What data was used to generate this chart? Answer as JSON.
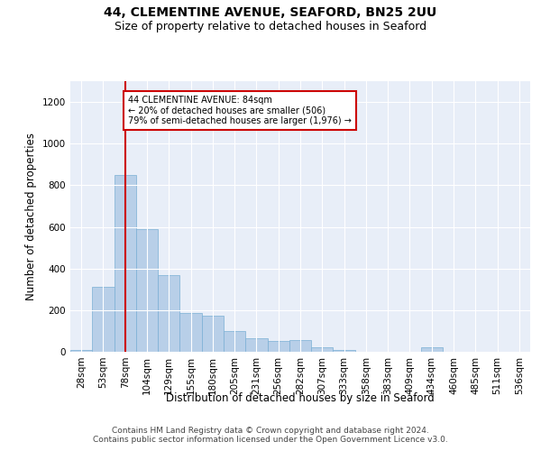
{
  "title1": "44, CLEMENTINE AVENUE, SEAFORD, BN25 2UU",
  "title2": "Size of property relative to detached houses in Seaford",
  "xlabel": "Distribution of detached houses by size in Seaford",
  "ylabel": "Number of detached properties",
  "categories": [
    "28sqm",
    "53sqm",
    "78sqm",
    "104sqm",
    "129sqm",
    "155sqm",
    "180sqm",
    "205sqm",
    "231sqm",
    "256sqm",
    "282sqm",
    "307sqm",
    "333sqm",
    "358sqm",
    "383sqm",
    "409sqm",
    "434sqm",
    "460sqm",
    "485sqm",
    "511sqm",
    "536sqm"
  ],
  "values": [
    10,
    310,
    850,
    590,
    370,
    185,
    175,
    100,
    65,
    50,
    55,
    20,
    10,
    0,
    0,
    0,
    20,
    0,
    0,
    0,
    0
  ],
  "bar_color": "#b8cfe8",
  "bar_edge_color": "#7aafd4",
  "highlight_color": "#cc0000",
  "annotation_line1": "44 CLEMENTINE AVENUE: 84sqm",
  "annotation_line2": "← 20% of detached houses are smaller (506)",
  "annotation_line3": "79% of semi-detached houses are larger (1,976) →",
  "annotation_box_color": "#ffffff",
  "annotation_box_edge": "#cc0000",
  "ylim": [
    0,
    1300
  ],
  "background_color": "#e8eef8",
  "footer_line1": "Contains HM Land Registry data © Crown copyright and database right 2024.",
  "footer_line2": "Contains public sector information licensed under the Open Government Licence v3.0.",
  "title1_fontsize": 10,
  "title2_fontsize": 9,
  "xlabel_fontsize": 8.5,
  "ylabel_fontsize": 8.5,
  "tick_fontsize": 7.5,
  "footer_fontsize": 6.5,
  "red_line_x": 2.0
}
